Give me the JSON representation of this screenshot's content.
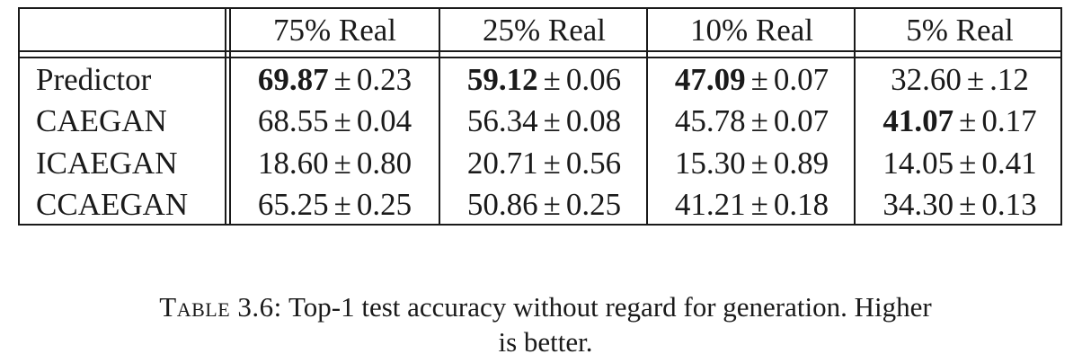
{
  "table": {
    "columns": [
      "75% Real",
      "25% Real",
      "10% Real",
      "5% Real"
    ],
    "rows": [
      {
        "label": "Predictor",
        "cells": [
          {
            "mean": "69.87",
            "std": "0.23",
            "best": true
          },
          {
            "mean": "59.12",
            "std": "0.06",
            "best": true
          },
          {
            "mean": "47.09",
            "std": "0.07",
            "best": true
          },
          {
            "mean": "32.60",
            "std": ".12",
            "best": false
          }
        ]
      },
      {
        "label": "CAEGAN",
        "cells": [
          {
            "mean": "68.55",
            "std": "0.04",
            "best": false
          },
          {
            "mean": "56.34",
            "std": "0.08",
            "best": false
          },
          {
            "mean": "45.78",
            "std": "0.07",
            "best": false
          },
          {
            "mean": "41.07",
            "std": "0.17",
            "best": true
          }
        ]
      },
      {
        "label": "ICAEGAN",
        "cells": [
          {
            "mean": "18.60",
            "std": "0.80",
            "best": false
          },
          {
            "mean": "20.71",
            "std": "0.56",
            "best": false
          },
          {
            "mean": "15.30",
            "std": "0.89",
            "best": false
          },
          {
            "mean": "14.05",
            "std": "0.41",
            "best": false
          }
        ]
      },
      {
        "label": "CCAEGAN",
        "cells": [
          {
            "mean": "65.25",
            "std": "0.25",
            "best": false
          },
          {
            "mean": "50.86",
            "std": "0.25",
            "best": false
          },
          {
            "mean": "41.21",
            "std": "0.18",
            "best": false
          },
          {
            "mean": "34.30",
            "std": "0.13",
            "best": false
          }
        ]
      }
    ],
    "pm_symbol": "±"
  },
  "caption": {
    "label": "Table 3.6:",
    "line1": "Top-1 test accuracy without regard for generation. Higher",
    "line2": "is better."
  }
}
